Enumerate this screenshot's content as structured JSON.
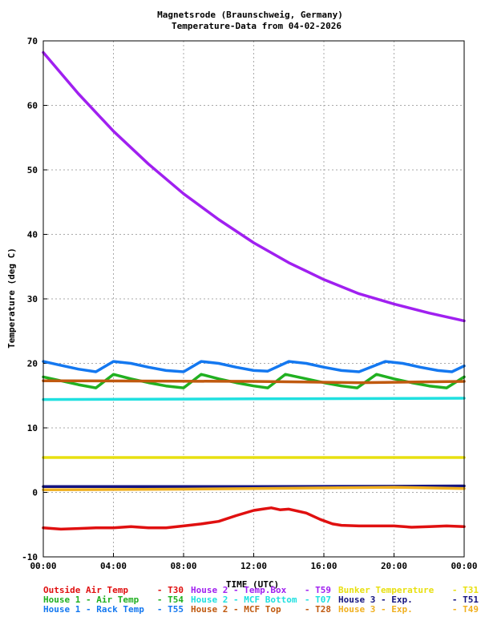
{
  "chart_data": {
    "type": "line",
    "title": "Magnetsrode (Braunschweig, Germany)",
    "subtitle": "Temperature-Data from 04-02-2026",
    "xlabel": "TIME (UTC)",
    "ylabel": "Temperature (deg C)",
    "xlim": [
      0,
      24
    ],
    "ylim": [
      -10,
      70
    ],
    "x_ticks": [
      "00:00",
      "04:00",
      "08:00",
      "12:00",
      "16:00",
      "20:00",
      "00:00"
    ],
    "y_ticks": [
      "-10",
      "0",
      "10",
      "20",
      "30",
      "40",
      "50",
      "60",
      "70"
    ],
    "grid": true,
    "series": [
      {
        "name": "Outside Air Temp",
        "sensor": "T30",
        "color": "#e01010",
        "points": [
          [
            0,
            -5.5
          ],
          [
            1,
            -5.7
          ],
          [
            2,
            -5.6
          ],
          [
            3,
            -5.5
          ],
          [
            4,
            -5.5
          ],
          [
            5,
            -5.3
          ],
          [
            6,
            -5.5
          ],
          [
            7,
            -5.5
          ],
          [
            8,
            -5.2
          ],
          [
            9,
            -4.9
          ],
          [
            10,
            -4.5
          ],
          [
            11,
            -3.6
          ],
          [
            12,
            -2.8
          ],
          [
            12.5,
            -2.6
          ],
          [
            13,
            -2.4
          ],
          [
            13.5,
            -2.7
          ],
          [
            14,
            -2.6
          ],
          [
            15,
            -3.2
          ],
          [
            15.8,
            -4.2
          ],
          [
            16.5,
            -4.9
          ],
          [
            17,
            -5.1
          ],
          [
            18,
            -5.2
          ],
          [
            19,
            -5.2
          ],
          [
            20,
            -5.2
          ],
          [
            21,
            -5.4
          ],
          [
            22,
            -5.3
          ],
          [
            23,
            -5.2
          ],
          [
            24,
            -5.3
          ]
        ]
      },
      {
        "name": "House 1 - Air Temp",
        "sensor": "T54",
        "color": "#20b020",
        "points": [
          [
            0,
            17.9
          ],
          [
            1,
            17.3
          ],
          [
            2,
            16.7
          ],
          [
            3,
            16.2
          ],
          [
            4,
            18.3
          ],
          [
            5,
            17.6
          ],
          [
            6,
            17.0
          ],
          [
            7,
            16.5
          ],
          [
            8,
            16.2
          ],
          [
            9,
            18.3
          ],
          [
            10,
            17.6
          ],
          [
            11,
            17.0
          ],
          [
            12,
            16.5
          ],
          [
            12.8,
            16.2
          ],
          [
            13.8,
            18.3
          ],
          [
            15,
            17.6
          ],
          [
            16,
            17.0
          ],
          [
            17,
            16.5
          ],
          [
            17.9,
            16.2
          ],
          [
            19,
            18.3
          ],
          [
            20,
            17.6
          ],
          [
            21,
            17.0
          ],
          [
            22,
            16.5
          ],
          [
            23,
            16.2
          ],
          [
            24,
            17.9
          ]
        ]
      },
      {
        "name": "House 1 - Rack Temp",
        "sensor": "T55",
        "color": "#1478f0",
        "points": [
          [
            0,
            20.3
          ],
          [
            1,
            19.7
          ],
          [
            2,
            19.1
          ],
          [
            3,
            18.7
          ],
          [
            4,
            20.3
          ],
          [
            5,
            20.0
          ],
          [
            6,
            19.4
          ],
          [
            7,
            18.9
          ],
          [
            8,
            18.7
          ],
          [
            9,
            20.3
          ],
          [
            10,
            20.0
          ],
          [
            11,
            19.4
          ],
          [
            12,
            18.9
          ],
          [
            12.8,
            18.8
          ],
          [
            14,
            20.3
          ],
          [
            15,
            20.0
          ],
          [
            16,
            19.4
          ],
          [
            17,
            18.9
          ],
          [
            18,
            18.7
          ],
          [
            19.5,
            20.3
          ],
          [
            20.5,
            20.0
          ],
          [
            21.5,
            19.4
          ],
          [
            22.5,
            18.9
          ],
          [
            23.3,
            18.7
          ],
          [
            24,
            19.6
          ]
        ]
      },
      {
        "name": "House 2 - Temp.Box",
        "sensor": "T59",
        "color": "#a020f0",
        "points": [
          [
            0,
            68.2
          ],
          [
            2,
            61.8
          ],
          [
            4,
            56.0
          ],
          [
            6,
            50.9
          ],
          [
            8,
            46.3
          ],
          [
            10,
            42.3
          ],
          [
            12,
            38.7
          ],
          [
            14,
            35.6
          ],
          [
            16,
            33.0
          ],
          [
            18,
            30.8
          ],
          [
            20,
            29.2
          ],
          [
            22,
            27.8
          ],
          [
            24,
            26.6
          ]
        ]
      },
      {
        "name": "House 2 - MCF Bottom",
        "sensor": "T07",
        "color": "#20e0e0",
        "points": [
          [
            0,
            14.4
          ],
          [
            12,
            14.5
          ],
          [
            24,
            14.6
          ]
        ]
      },
      {
        "name": "House 2 - MCF Top",
        "sensor": "T28",
        "color": "#c05a10",
        "points": [
          [
            0,
            17.3
          ],
          [
            12,
            17.2
          ],
          [
            18,
            17.0
          ],
          [
            24,
            17.2
          ]
        ]
      },
      {
        "name": "Bunker Temperature",
        "sensor": "T31",
        "color": "#e8e010",
        "points": [
          [
            0,
            5.4
          ],
          [
            24,
            5.4
          ]
        ]
      },
      {
        "name": "House 3 - Exp.",
        "sensor": "T51",
        "color": "#141480",
        "points": [
          [
            0,
            0.9
          ],
          [
            12,
            0.9
          ],
          [
            24,
            1.0
          ]
        ]
      },
      {
        "name": "House 3 - Exp.",
        "sensor": "T49",
        "color": "#f0b020",
        "points": [
          [
            0,
            0.4
          ],
          [
            8,
            0.5
          ],
          [
            12,
            0.6
          ],
          [
            20,
            0.8
          ],
          [
            24,
            0.6
          ]
        ]
      }
    ],
    "legend": [
      {
        "label": "Outside Air Temp",
        "code": "- T30",
        "color": "#e01010"
      },
      {
        "label": "House 2 - Temp.Box",
        "code": "- T59",
        "color": "#a020f0"
      },
      {
        "label": "Bunker Temperature",
        "code": "- T31",
        "color": "#e8e010"
      },
      {
        "label": "House 1 - Air  Temp",
        "code": "- T54",
        "color": "#20b020"
      },
      {
        "label": "House 2 - MCF Bottom",
        "code": "- T07",
        "color": "#20e0e0"
      },
      {
        "label": "House 3 - Exp.",
        "code": "- T51",
        "color": "#141480"
      },
      {
        "label": "House 1 - Rack Temp",
        "code": "- T55",
        "color": "#1478f0"
      },
      {
        "label": "House 2 - MCF Top",
        "code": "- T28",
        "color": "#c05a10"
      },
      {
        "label": "House 3 - Exp.",
        "code": "- T49",
        "color": "#f0b020"
      }
    ]
  }
}
